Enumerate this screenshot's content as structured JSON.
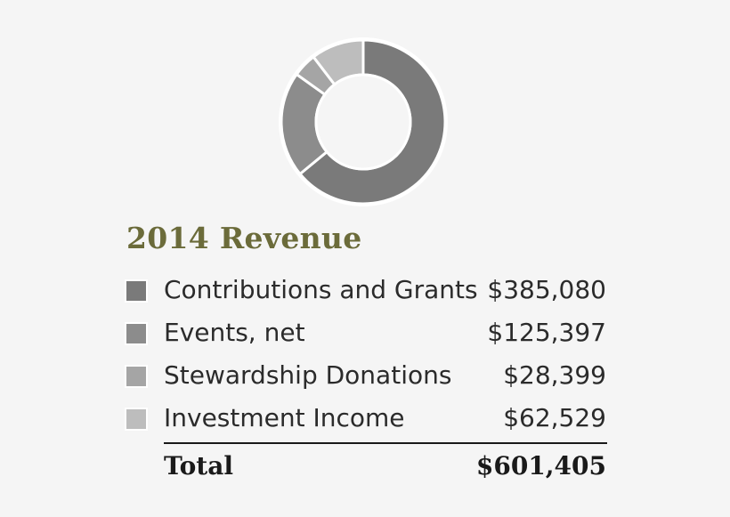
{
  "chart_data": {
    "type": "pie",
    "title": "2014 Revenue",
    "categories": [
      "Contributions and Grants",
      "Events, net",
      "Stewardship Donations",
      "Investment Income"
    ],
    "values": [
      385080,
      125397,
      28399,
      62529
    ],
    "value_labels": [
      "$385,080",
      "$125,397",
      "$28,399",
      "$62,529"
    ],
    "colors": [
      "#7a7a7a",
      "#8c8c8c",
      "#a5a5a5",
      "#bdbdbd"
    ],
    "total_label": "Total",
    "total_value": "$601,405",
    "legend_placement": "bottom"
  }
}
